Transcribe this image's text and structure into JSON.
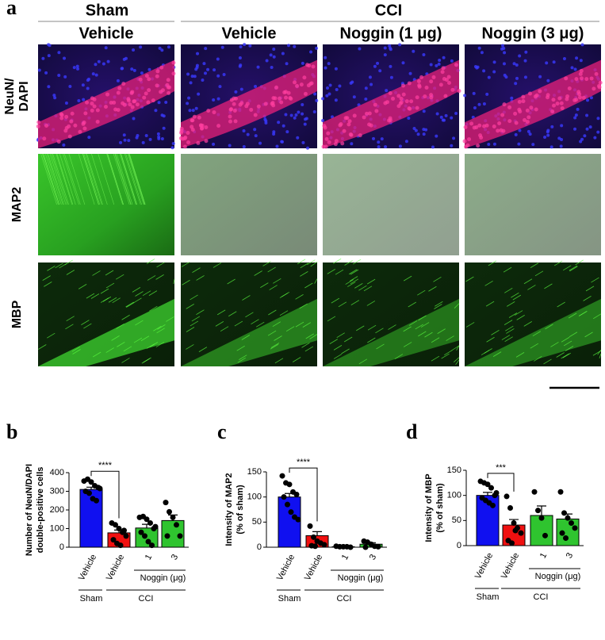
{
  "panel_a": {
    "letter": "a",
    "groups": [
      "Sham",
      "CCI"
    ],
    "columns": [
      "Vehicle",
      "Vehicle",
      "Noggin (1 μg)",
      "Noggin (3 μg)"
    ],
    "rows": [
      [
        "NeuN/",
        "DAPI"
      ],
      [
        "MAP2"
      ],
      [
        "MBP"
      ]
    ]
  },
  "chart_data": [
    {
      "type": "bar",
      "letter": "b",
      "y_label": [
        "Number of  NeuN/DAPI",
        "double-positive cells"
      ],
      "categories": [
        "Vehicle",
        "Vehicle",
        "1",
        "3"
      ],
      "group_labels": [
        "Sham",
        "CCI"
      ],
      "subgroup_label": "Noggin (μg)",
      "colors": [
        "#1010f0",
        "#f01010",
        "#2fc42f",
        "#2fc42f"
      ],
      "values": [
        310,
        77,
        103,
        143
      ],
      "errors": [
        12,
        15,
        20,
        30
      ],
      "points": [
        [
          355,
          365,
          350,
          330,
          320,
          300,
          290,
          260,
          250,
          315
        ],
        [
          130,
          120,
          100,
          80,
          60,
          40,
          20,
          10,
          90
        ],
        [
          160,
          165,
          150,
          130,
          100,
          80,
          60,
          30,
          10,
          110
        ],
        [
          240,
          190,
          160,
          120,
          60,
          60
        ]
      ],
      "significance": "****",
      "ylim": [
        0,
        400
      ],
      "yticks": [
        0,
        100,
        200,
        300,
        400
      ]
    },
    {
      "type": "bar",
      "letter": "c",
      "y_label": [
        "Intensity of MAP2",
        "(% of sham)"
      ],
      "categories": [
        "Vehicle",
        "Vehicle",
        "1",
        "3"
      ],
      "group_labels": [
        "Sham",
        "CCI"
      ],
      "subgroup_label": "Noggin (μg)",
      "colors": [
        "#1010f0",
        "#f01010",
        "#2fc42f",
        "#2fc42f"
      ],
      "values": [
        100,
        23,
        1,
        6
      ],
      "errors": [
        7,
        8,
        0.5,
        3
      ],
      "points": [
        [
          142,
          128,
          125,
          110,
          105,
          100,
          85,
          70,
          60,
          55
        ],
        [
          42,
          20,
          12,
          8,
          5,
          3,
          2
        ],
        [
          2,
          1,
          1,
          1,
          0
        ],
        [
          12,
          10,
          6,
          2,
          1,
          0
        ]
      ],
      "significance": "****",
      "ylim": [
        0,
        150
      ],
      "yticks": [
        0,
        50,
        100,
        150
      ]
    },
    {
      "type": "bar",
      "letter": "d",
      "y_label": [
        "Intensity of MBP",
        "(% of sham)"
      ],
      "categories": [
        "Vehicle",
        "Vehicle",
        "1",
        "3"
      ],
      "group_labels": [
        "Sham",
        "CCI"
      ],
      "subgroup_label": "Noggin (μg)",
      "colors": [
        "#1010f0",
        "#f01010",
        "#2fc42f",
        "#2fc42f"
      ],
      "values": [
        100,
        41,
        60,
        53
      ],
      "errors": [
        6,
        11,
        19,
        10
      ],
      "points": [
        [
          128,
          125,
          122,
          115,
          100,
          95,
          90,
          85,
          80,
          105
        ],
        [
          98,
          75,
          45,
          35,
          25,
          10,
          5,
          30
        ],
        [
          107,
          70,
          55,
          20
        ],
        [
          107,
          65,
          55,
          45,
          35,
          25,
          15
        ]
      ],
      "significance": "***",
      "ylim": [
        0,
        150
      ],
      "yticks": [
        0,
        50,
        100,
        150
      ]
    }
  ]
}
